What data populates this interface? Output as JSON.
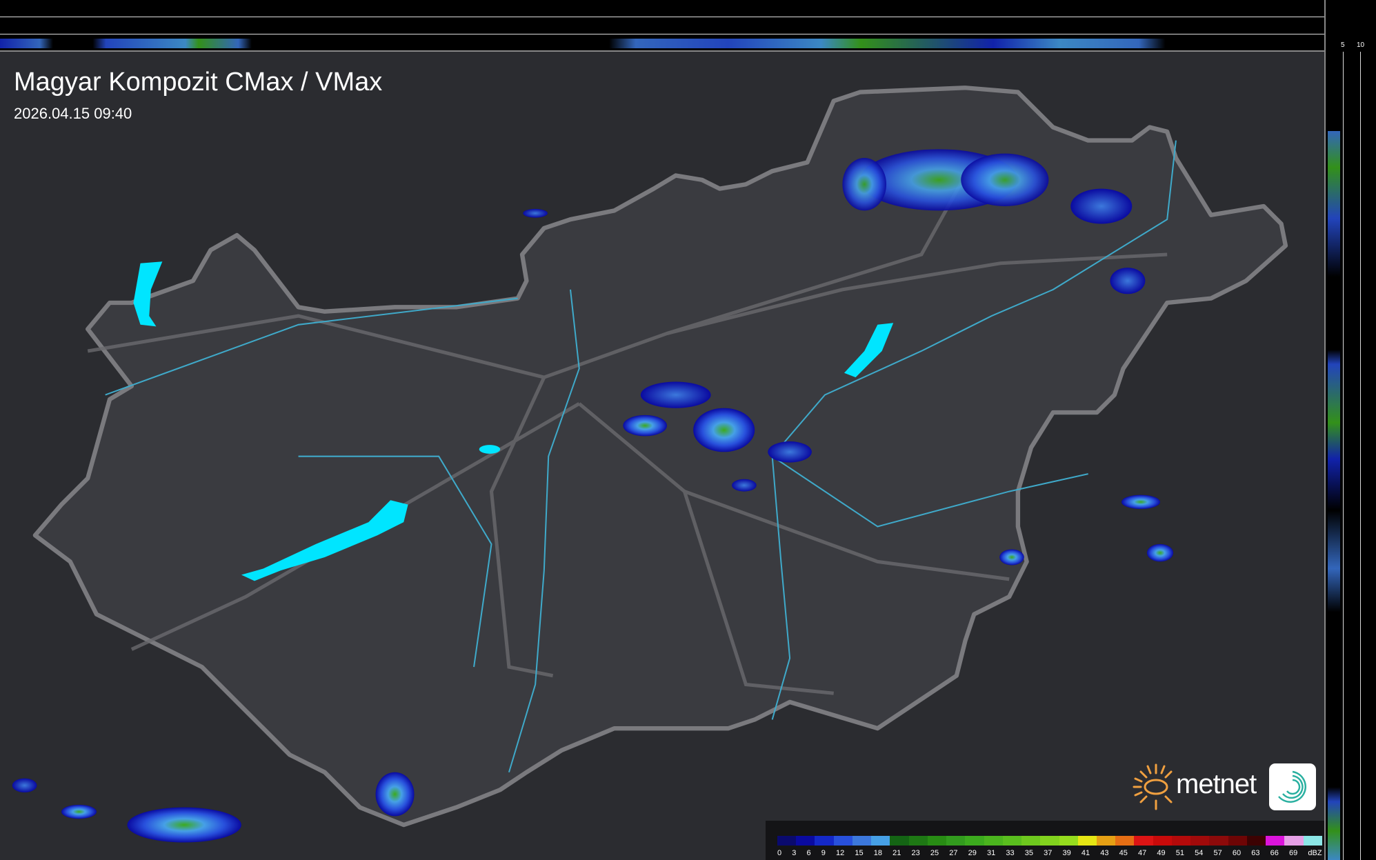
{
  "header": {
    "title": "Magyar Kompozit CMax / VMax",
    "timestamp": "2026.04.15 09:40"
  },
  "profiles": {
    "top_ticks": [
      "10",
      "5"
    ],
    "right_ticks": [
      "5",
      "10"
    ]
  },
  "legend": {
    "unit": "dBZ",
    "labels": [
      "0",
      "3",
      "6",
      "9",
      "12",
      "15",
      "18",
      "21",
      "23",
      "25",
      "27",
      "29",
      "31",
      "33",
      "35",
      "37",
      "39",
      "41",
      "43",
      "45",
      "47",
      "49",
      "51",
      "54",
      "57",
      "60",
      "63",
      "66",
      "69"
    ],
    "colors": [
      "#0a0a6e",
      "#0a0aa0",
      "#1428c8",
      "#2850dc",
      "#3c78dc",
      "#46a0e6",
      "#146414",
      "#1e7814",
      "#288c14",
      "#329b1e",
      "#3caa1e",
      "#4bb41e",
      "#5abe1e",
      "#6ec81e",
      "#82d21e",
      "#96dc1e",
      "#e6e614",
      "#e6a014",
      "#e66e14",
      "#dc1414",
      "#c80a0a",
      "#b40a0a",
      "#a00a0a",
      "#8c0a0a",
      "#6e0505",
      "#3c0202",
      "#dc14dc",
      "#e6a0e6",
      "#8ce6e6"
    ]
  },
  "map": {
    "country_fill": "#3a3b40",
    "border_color": "#7a7a7e",
    "water_color": "#00e5ff",
    "river_color": "#3fa9c9"
  },
  "logo": {
    "text": "metnet",
    "sun_color": "#f0a040",
    "badge_color": "#2ab0a0"
  }
}
